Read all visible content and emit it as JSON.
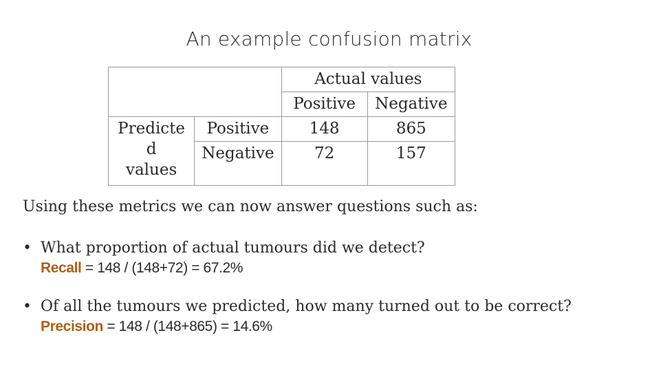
{
  "title": "An example confusion matrix",
  "matrix": {
    "header_actual": "Actual values",
    "col_positive": "Positive",
    "col_negative": "Negative",
    "row_label": "Predicte d values",
    "row_label_lines": [
      "Predicte",
      "d",
      "values"
    ],
    "row_positive": "Positive",
    "row_negative": "Negative",
    "cells": {
      "pos_pos": "148",
      "pos_neg": "865",
      "neg_pos": "72",
      "neg_neg": "157"
    }
  },
  "intro": "Using these metrics we can now answer questions such as:",
  "bullets": [
    {
      "question": "What proportion of actual tumours did we detect?",
      "metric": "Recall",
      "formula": " = 148 / (148+72) = 67.2%"
    },
    {
      "question": "Of all the tumours we predicted, how many turned out to be correct?",
      "metric": "Precision",
      "formula": " = 148 / (148+865) = 14.6%"
    }
  ],
  "colors": {
    "accent": "#b05f14",
    "text": "#2b2b2b",
    "border": "#9a9a9a"
  }
}
